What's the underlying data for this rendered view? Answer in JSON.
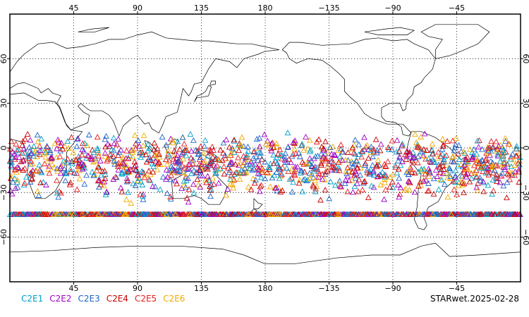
{
  "map": {
    "projection": "equirectangular",
    "center_longitude": 180,
    "lon_range": [
      0,
      360
    ],
    "lat_range": [
      -90,
      90
    ],
    "grid": "dotted",
    "grid_longitudes": [
      45,
      90,
      135,
      180,
      -135,
      -90,
      -45
    ],
    "grid_latitudes": [
      60,
      30,
      0,
      -30,
      -60
    ],
    "top_tick_labels": [
      "45",
      "90",
      "135",
      "180",
      "−135",
      "−90",
      "−45"
    ],
    "bottom_tick_labels": [
      "45",
      "90",
      "135",
      "180",
      "−135",
      "−90",
      "−45"
    ],
    "left_tick_labels": [
      "60",
      "30",
      "0",
      "−30",
      "−60"
    ],
    "right_tick_labels": [
      "60",
      "30",
      "0",
      "−30",
      "−60"
    ],
    "marker": "open-triangle",
    "observation_lat_band": [
      -45,
      45
    ],
    "series": [
      {
        "name": "C2E1",
        "color": "#00a0c8"
      },
      {
        "name": "C2E2",
        "color": "#a000c8"
      },
      {
        "name": "C2E3",
        "color": "#1e64c8"
      },
      {
        "name": "C2E4",
        "color": "#c80000"
      },
      {
        "name": "C2E5",
        "color": "#e61e1e"
      },
      {
        "name": "C2E6",
        "color": "#f0aa00"
      }
    ]
  },
  "legend": {
    "entries": [
      "C2E1",
      "C2E2",
      "C2E3",
      "C2E4",
      "C2E5",
      "C2E6"
    ]
  },
  "stamp": {
    "text": "STARwet.2025-02-28"
  }
}
